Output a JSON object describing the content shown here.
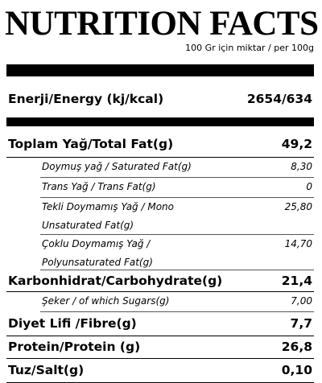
{
  "header": {
    "title": "NUTRITION FACTS",
    "subtitle": "100 Gr için miktar / per 100g"
  },
  "energy": {
    "label": "Enerji/Energy (kj/kcal)",
    "value": "2654/634"
  },
  "rows": [
    {
      "lines": [
        "Toplam Yağ/Total Fat(g)"
      ],
      "value": "49,2",
      "kind": "main"
    },
    {
      "lines": [
        "Doymuş yağ / Saturated Fat(g)"
      ],
      "value": "8,30",
      "kind": "sub"
    },
    {
      "lines": [
        "Trans Yağ / Trans Fat(g)"
      ],
      "value": "0",
      "kind": "sub"
    },
    {
      "lines": [
        "Tekli Doymamış Yağ / Mono",
        "Unsaturated Fat(g)"
      ],
      "value": "25,80",
      "kind": "sub"
    },
    {
      "lines": [
        "Çoklu Doymamış Yağ /",
        "Polyunsaturated Fat(g)"
      ],
      "value": "14,70",
      "kind": "sub"
    },
    {
      "lines": [
        "Karbonhidrat/Carbohydrate(g)"
      ],
      "value": "21,4",
      "kind": "main"
    },
    {
      "lines": [
        "Şeker / of which Sugars(g)"
      ],
      "value": "7,00",
      "kind": "sub"
    },
    {
      "lines": [
        "Diyet Lifi /Fibre(g)"
      ],
      "value": "7,7",
      "kind": "main"
    },
    {
      "lines": [
        "Protein/Protein (g)"
      ],
      "value": "26,8",
      "kind": "main"
    },
    {
      "lines": [
        "Tuz/Salt(g)"
      ],
      "value": "0,10",
      "kind": "main"
    }
  ]
}
